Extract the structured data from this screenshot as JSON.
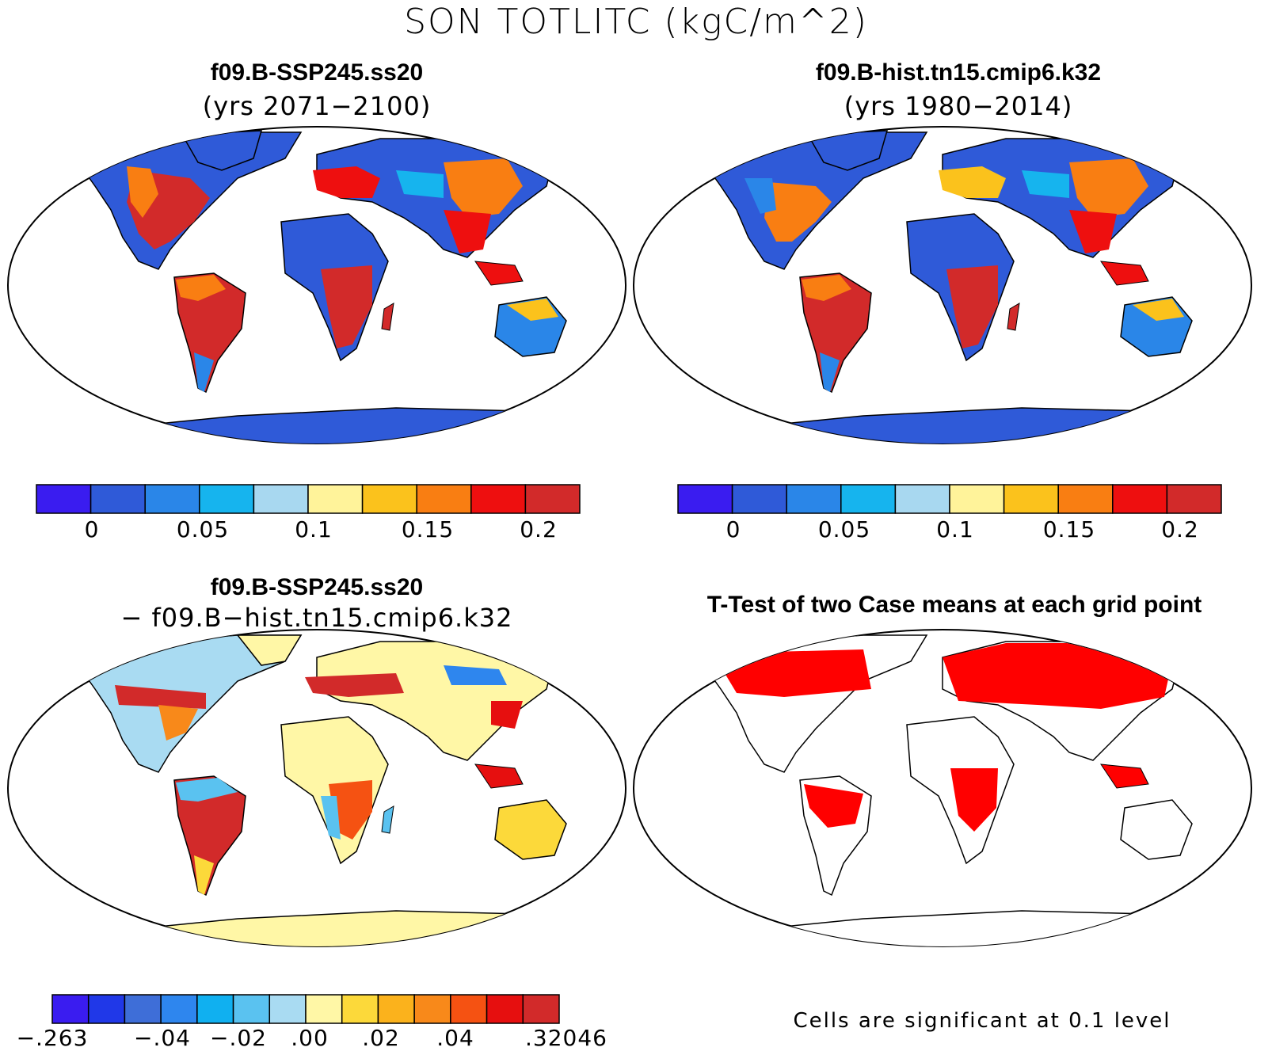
{
  "figure": {
    "title": "SON TOTLITC (kgC/m^2)",
    "note": "Cells are significant at 0.1 level"
  },
  "panels": {
    "top_left": {
      "title": "f09.B-SSP245.ss20",
      "subtitle": "(yrs 2071−2100)"
    },
    "top_right": {
      "title": "f09.B-hist.tn15.cmip6.k32",
      "subtitle": "(yrs 1980−2014)"
    },
    "bottom_left": {
      "title": "f09.B-SSP245.ss20",
      "subtitle": "− f09.B−hist.tn15.cmip6.k32"
    },
    "bottom_right": {
      "title": "T-Test of two Case means at each grid point"
    }
  },
  "colorbars": {
    "abs": {
      "colors": [
        "#3a1cf0",
        "#2f5ad8",
        "#2a86e8",
        "#16b4ee",
        "#a8d8f0",
        "#fff39a",
        "#fbc21c",
        "#f97e12",
        "#ee0f0f",
        "#d22a2a"
      ],
      "labels": [
        "0",
        "0.05",
        "0.1",
        "0.15",
        "0.2"
      ]
    },
    "diff": {
      "colors": [
        "#3a1cf0",
        "#2038e8",
        "#3e6ed8",
        "#2e86ee",
        "#10b0f0",
        "#5ac2f0",
        "#a9dbf2",
        "#fff7a6",
        "#fcd93a",
        "#fbb21c",
        "#f8891a",
        "#f55212",
        "#e60f0f",
        "#d22a2a"
      ],
      "labels": [
        "−.263",
        "−.04",
        "−.02",
        ".00",
        ".02",
        ".04",
        ".32046"
      ]
    }
  },
  "map_colors": {
    "ocean": "#ffffff",
    "land_outline": "#000000",
    "significant": "#ff0000"
  }
}
